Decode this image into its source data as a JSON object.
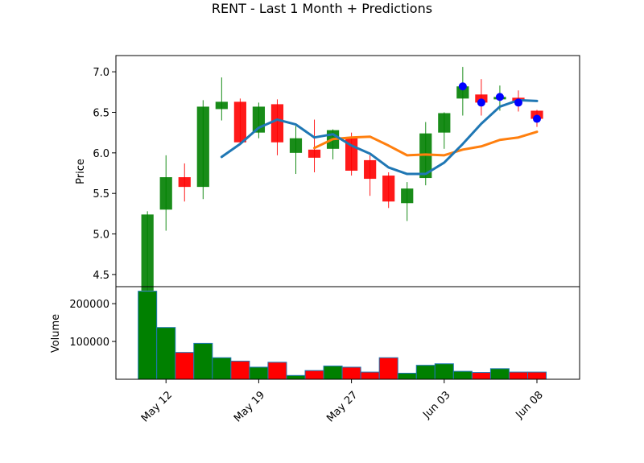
{
  "chart_data": {
    "type": "candlestick",
    "title": "RENT - Last 1 Month + Predictions",
    "colors": {
      "up": "#008000",
      "down": "#ff0000",
      "ma_short": "#1f77b4",
      "ma_long": "#ff7f0e",
      "prediction": "#0000ff"
    },
    "price_panel": {
      "ylabel": "Price",
      "ylim": [
        4.35,
        7.2
      ],
      "yticks": [
        4.5,
        5.0,
        5.5,
        6.0,
        6.5,
        7.0
      ],
      "ytick_labels": [
        "4.5",
        "5.0",
        "5.5",
        "6.0",
        "6.5",
        "7.0"
      ]
    },
    "volume_panel": {
      "ylabel": "Volume",
      "ylim": [
        0,
        245000
      ],
      "yticks": [
        100000,
        200000
      ],
      "ytick_labels": [
        "100000",
        "200000"
      ]
    },
    "x_axis": {
      "xlim": [
        -1.7,
        23.3
      ],
      "tick_positions": [
        1,
        6,
        11,
        16,
        21
      ],
      "tick_labels": [
        "May 12",
        "May 19",
        "May 27",
        "Jun 03",
        "Jun 08"
      ]
    },
    "candles": [
      {
        "x": 0,
        "open": 4.3,
        "high": 5.28,
        "low": 4.3,
        "close": 5.24
      },
      {
        "x": 1,
        "open": 5.3,
        "high": 5.97,
        "low": 5.04,
        "close": 5.7
      },
      {
        "x": 2,
        "open": 5.7,
        "high": 5.87,
        "low": 5.4,
        "close": 5.58
      },
      {
        "x": 3,
        "open": 5.58,
        "high": 6.65,
        "low": 5.43,
        "close": 6.57
      },
      {
        "x": 4,
        "open": 6.54,
        "high": 6.93,
        "low": 6.4,
        "close": 6.63
      },
      {
        "x": 5,
        "open": 6.63,
        "high": 6.67,
        "low": 6.12,
        "close": 6.13
      },
      {
        "x": 6,
        "open": 6.25,
        "high": 6.62,
        "low": 6.18,
        "close": 6.57
      },
      {
        "x": 7,
        "open": 6.6,
        "high": 6.66,
        "low": 5.97,
        "close": 6.13
      },
      {
        "x": 8,
        "open": 6.0,
        "high": 6.33,
        "low": 5.74,
        "close": 6.18
      },
      {
        "x": 9,
        "open": 6.04,
        "high": 6.41,
        "low": 5.76,
        "close": 5.94
      },
      {
        "x": 10,
        "open": 6.05,
        "high": 6.29,
        "low": 5.92,
        "close": 6.28
      },
      {
        "x": 11,
        "open": 6.19,
        "high": 6.25,
        "low": 5.72,
        "close": 5.78
      },
      {
        "x": 12,
        "open": 5.91,
        "high": 5.97,
        "low": 5.47,
        "close": 5.68
      },
      {
        "x": 13,
        "open": 5.72,
        "high": 5.76,
        "low": 5.32,
        "close": 5.4
      },
      {
        "x": 14,
        "open": 5.38,
        "high": 5.64,
        "low": 5.16,
        "close": 5.56
      },
      {
        "x": 15,
        "open": 5.69,
        "high": 6.38,
        "low": 5.6,
        "close": 6.24
      },
      {
        "x": 16,
        "open": 6.25,
        "high": 6.5,
        "low": 6.05,
        "close": 6.49
      },
      {
        "x": 17,
        "open": 6.67,
        "high": 7.06,
        "low": 6.46,
        "close": 6.82
      },
      {
        "x": 18,
        "open": 6.72,
        "high": 6.91,
        "low": 6.46,
        "close": 6.62
      },
      {
        "x": 19,
        "open": 6.66,
        "high": 6.83,
        "low": 6.52,
        "close": 6.69
      },
      {
        "x": 20,
        "open": 6.68,
        "high": 6.77,
        "low": 6.51,
        "close": 6.64
      },
      {
        "x": 21,
        "open": 6.52,
        "high": 6.53,
        "low": 6.32,
        "close": 6.42
      }
    ],
    "volume": [
      233000,
      137000,
      71000,
      95000,
      57000,
      48000,
      32000,
      45000,
      10000,
      23000,
      35000,
      32000,
      19000,
      57000,
      16000,
      37000,
      41000,
      21000,
      18000,
      28000,
      19000,
      19000
    ],
    "ma_short": {
      "x": [
        4,
        5,
        6,
        7,
        8,
        9,
        10,
        11,
        12,
        13,
        14,
        15,
        16,
        17,
        18,
        19,
        20,
        21
      ],
      "y": [
        5.95,
        6.11,
        6.31,
        6.41,
        6.35,
        6.19,
        6.23,
        6.09,
        5.99,
        5.82,
        5.74,
        5.74,
        5.88,
        6.11,
        6.36,
        6.57,
        6.65,
        6.64
      ]
    },
    "ma_long": {
      "x": [
        9,
        10,
        11,
        12,
        13,
        14,
        15,
        16,
        17,
        18,
        19,
        20,
        21
      ],
      "y": [
        6.06,
        6.17,
        6.19,
        6.2,
        6.09,
        5.97,
        5.98,
        5.97,
        6.04,
        6.08,
        6.16,
        6.19,
        6.26
      ]
    },
    "predictions": {
      "x": [
        17,
        18,
        19,
        20,
        21
      ],
      "y": [
        6.82,
        6.62,
        6.69,
        6.62,
        6.42
      ]
    }
  }
}
